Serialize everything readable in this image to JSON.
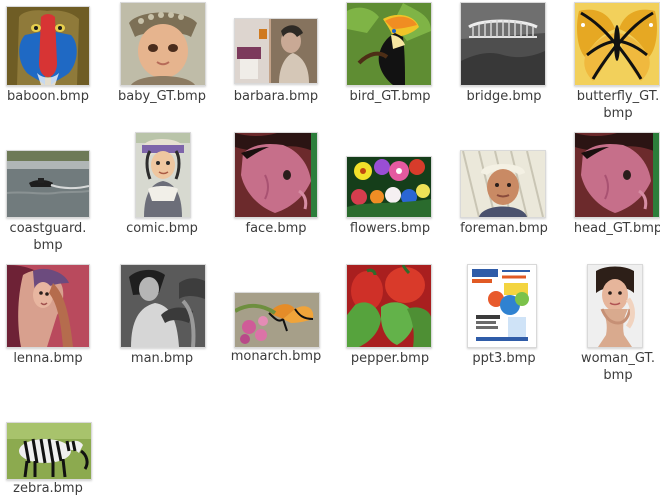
{
  "file_manager": {
    "files": [
      {
        "name": "baboon.bmp",
        "icon": "baboon-thumbnail",
        "row": 1,
        "col": 1
      },
      {
        "name": "baby_GT.bmp",
        "icon": "baby-thumbnail",
        "row": 1,
        "col": 2
      },
      {
        "name": "barbara.bmp",
        "icon": "barbara-thumbnail",
        "row": 1,
        "col": 3
      },
      {
        "name": "bird_GT.bmp",
        "icon": "bird-thumbnail",
        "row": 1,
        "col": 4
      },
      {
        "name": "bridge.bmp",
        "icon": "bridge-thumbnail",
        "row": 1,
        "col": 5
      },
      {
        "name": "butterfly_GT.\nbmp",
        "icon": "butterfly-thumbnail",
        "row": 1,
        "col": 6
      },
      {
        "name": "coastguard.\nbmp",
        "icon": "coastguard-thumbnail",
        "row": 2,
        "col": 1
      },
      {
        "name": "comic.bmp",
        "icon": "comic-thumbnail",
        "row": 2,
        "col": 2
      },
      {
        "name": "face.bmp",
        "icon": "face-thumbnail",
        "row": 2,
        "col": 3
      },
      {
        "name": "flowers.bmp",
        "icon": "flowers-thumbnail",
        "row": 2,
        "col": 4
      },
      {
        "name": "foreman.bmp",
        "icon": "foreman-thumbnail",
        "row": 2,
        "col": 5
      },
      {
        "name": "head_GT.bmp",
        "icon": "head-thumbnail",
        "row": 2,
        "col": 6
      },
      {
        "name": "lenna.bmp",
        "icon": "lenna-thumbnail",
        "row": 3,
        "col": 1
      },
      {
        "name": "man.bmp",
        "icon": "man-thumbnail",
        "row": 3,
        "col": 2
      },
      {
        "name": "monarch.bmp",
        "icon": "monarch-thumbnail",
        "row": 3,
        "col": 3
      },
      {
        "name": "pepper.bmp",
        "icon": "pepper-thumbnail",
        "row": 3,
        "col": 4
      },
      {
        "name": "ppt3.bmp",
        "icon": "ppt3-thumbnail",
        "row": 3,
        "col": 5
      },
      {
        "name": "woman_GT.\nbmp",
        "icon": "woman-thumbnail",
        "row": 3,
        "col": 6
      },
      {
        "name": "zebra.bmp",
        "icon": "zebra-thumbnail",
        "row": 4,
        "col": 1
      }
    ]
  }
}
